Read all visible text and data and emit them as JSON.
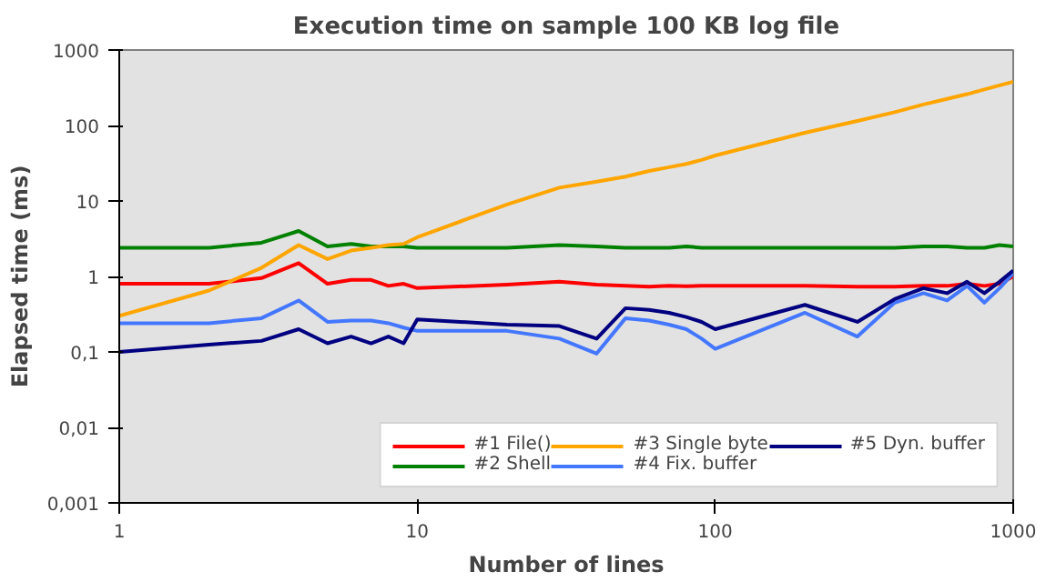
{
  "chart_data": {
    "type": "line",
    "title": "Execution time on sample 100 KB log file",
    "xlabel": "Number of lines",
    "ylabel": "Elapsed time (ms)",
    "x": [
      1,
      2,
      3,
      4,
      5,
      6,
      7,
      8,
      9,
      10,
      20,
      30,
      40,
      50,
      60,
      70,
      80,
      90,
      100,
      200,
      300,
      400,
      500,
      600,
      700,
      800,
      900,
      1000
    ],
    "series": [
      {
        "name": "#1 File()",
        "color": "#ff0000",
        "values": [
          0.8,
          0.8,
          0.95,
          1.5,
          0.8,
          0.9,
          0.9,
          0.75,
          0.8,
          0.7,
          0.78,
          0.85,
          0.78,
          0.75,
          0.73,
          0.75,
          0.74,
          0.75,
          0.75,
          0.75,
          0.73,
          0.73,
          0.75,
          0.75,
          0.8,
          0.75,
          0.8,
          1.0
        ]
      },
      {
        "name": "#2 Shell",
        "color": "#008000",
        "values": [
          2.4,
          2.4,
          2.8,
          4.0,
          2.5,
          2.7,
          2.5,
          2.5,
          2.5,
          2.4,
          2.4,
          2.6,
          2.5,
          2.4,
          2.4,
          2.4,
          2.5,
          2.4,
          2.4,
          2.4,
          2.4,
          2.4,
          2.5,
          2.5,
          2.4,
          2.4,
          2.6,
          2.5
        ]
      },
      {
        "name": "#3 Single byte",
        "color": "#ffa500",
        "values": [
          0.3,
          0.65,
          1.3,
          2.6,
          1.7,
          2.2,
          2.4,
          2.6,
          2.7,
          3.3,
          9,
          15,
          18,
          21,
          25,
          28,
          31,
          35,
          40,
          80,
          115,
          150,
          190,
          225,
          260,
          300,
          340,
          380
        ]
      },
      {
        "name": "#4 Fix. buffer",
        "color": "#4477ff",
        "values": [
          0.24,
          0.24,
          0.28,
          0.48,
          0.25,
          0.26,
          0.26,
          0.24,
          0.21,
          0.19,
          0.19,
          0.15,
          0.095,
          0.28,
          0.26,
          0.23,
          0.2,
          0.15,
          0.11,
          0.33,
          0.16,
          0.45,
          0.6,
          0.48,
          0.75,
          0.45,
          0.7,
          1.1
        ]
      },
      {
        "name": "#5 Dyn. buffer",
        "color": "#000080",
        "values": [
          0.1,
          0.125,
          0.14,
          0.2,
          0.13,
          0.16,
          0.13,
          0.16,
          0.13,
          0.27,
          0.23,
          0.22,
          0.15,
          0.38,
          0.36,
          0.33,
          0.29,
          0.25,
          0.2,
          0.42,
          0.25,
          0.5,
          0.7,
          0.6,
          0.85,
          0.6,
          0.85,
          1.2
        ]
      }
    ],
    "log": "xy",
    "xlim": [
      1,
      1000
    ],
    "ylim": [
      0.001,
      1000
    ],
    "xticks": [
      1,
      10,
      100,
      1000
    ],
    "yticks": [
      {
        "value": 0.001,
        "label": "0,001"
      },
      {
        "value": 0.01,
        "label": "0,01"
      },
      {
        "value": 0.1,
        "label": "0,1"
      },
      1,
      10,
      100,
      1000
    ],
    "grid": false,
    "legend": "bottom right",
    "marker": "none",
    "line_style": "solid"
  }
}
